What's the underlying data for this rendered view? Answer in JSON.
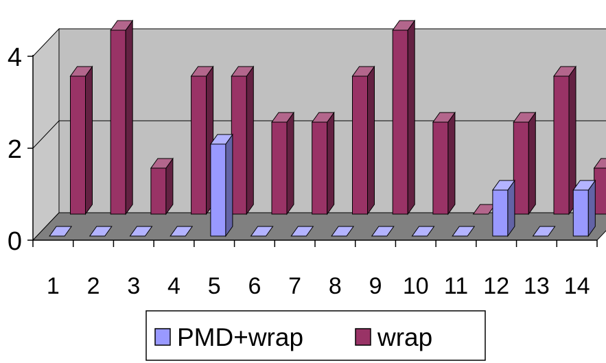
{
  "chart_data": {
    "type": "bar",
    "style": "3d-clustered-columns",
    "categories": [
      "1",
      "2",
      "3",
      "4",
      "5",
      "6",
      "7",
      "8",
      "9",
      "10",
      "11",
      "12",
      "13",
      "14"
    ],
    "series": [
      {
        "name": "PMD+wrap",
        "values": [
          0,
          0,
          0,
          0,
          2,
          0,
          0,
          0,
          0,
          0,
          0,
          1,
          0,
          1
        ],
        "color": "#9999ff"
      },
      {
        "name": "wrap",
        "values": [
          3,
          4,
          1,
          3,
          3,
          2,
          2,
          3,
          4,
          2,
          0,
          2,
          3,
          1
        ],
        "color": "#993366"
      }
    ],
    "ylim": [
      0,
      4
    ],
    "y_ticks": [
      "0",
      "2",
      "4"
    ],
    "title": "",
    "xlabel": "",
    "ylabel": "",
    "grid": true,
    "legend_position": "bottom",
    "colors": {
      "wall": "#c0c0c0",
      "floor": "#808080",
      "side_wall": "#c8c8c8"
    }
  }
}
